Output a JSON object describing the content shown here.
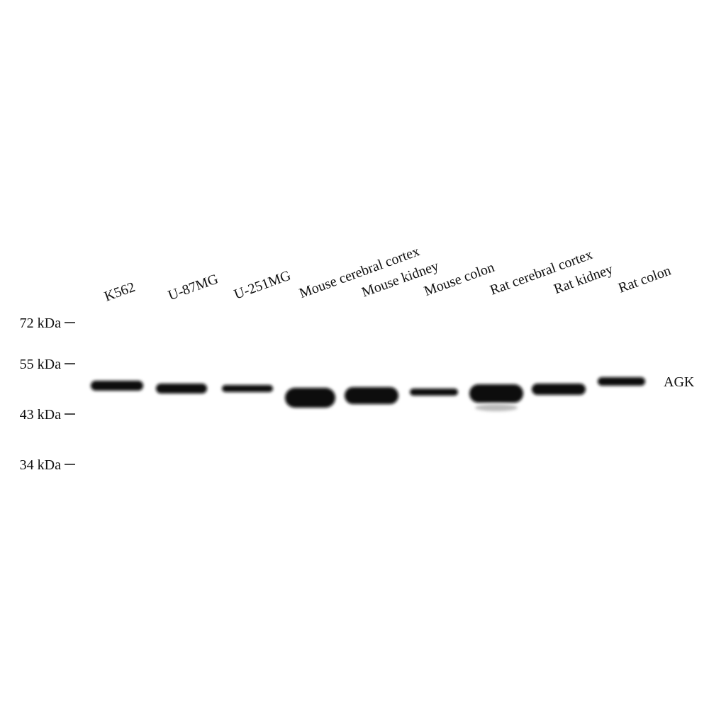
{
  "lanes": [
    "K562",
    "U-87MG",
    "U-251MG",
    "Mouse cerebral cortex",
    "Mouse kidney",
    "Mouse colon",
    "Rat cerebral cortex",
    "Rat kidney",
    "Rat colon"
  ],
  "markers": [
    "72 kDa",
    "55 kDa",
    "43 kDa",
    "34 kDa"
  ],
  "band_label": "AGK"
}
